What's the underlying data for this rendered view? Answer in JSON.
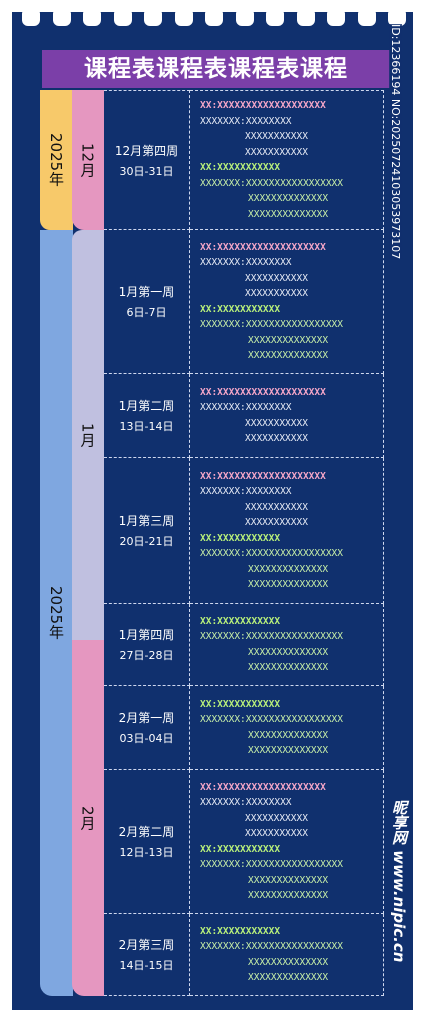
{
  "title": "课程表课程表课程表课程",
  "years": [
    {
      "label": "2025年",
      "color": "#f7c96a"
    },
    {
      "label": "2025年",
      "color": "#7fa7e0"
    }
  ],
  "months": [
    {
      "label": "12月",
      "color": "#e597c0"
    },
    {
      "label": "1月",
      "color": "#c0c0e0"
    },
    {
      "label": "2月",
      "color": "#e597c0"
    }
  ],
  "line_colors": {
    "pink-head": "#f4a6c8",
    "white": "#e8ecf6",
    "white-cont": "#e8ecf6",
    "green-head": "#b8f07a",
    "green": "#c8f0a8",
    "green-cont": "#c8f0a8"
  },
  "weeks": [
    {
      "label": "12月第四周",
      "dates": "30日-31日",
      "lines": [
        {
          "text": "XX:XXXXXXXXXXXXXXXXXXX",
          "kind": "pink-head"
        },
        {
          "text": "XXXXXXX:XXXXXXXX",
          "kind": "white"
        },
        {
          "text": "XXXXXXXXXXX",
          "kind": "white-cont"
        },
        {
          "text": "XXXXXXXXXXX",
          "kind": "white-cont"
        },
        {
          "text": "XX:XXXXXXXXXXX",
          "kind": "green-head"
        },
        {
          "text": "XXXXXXX:XXXXXXXXXXXXXXXXX",
          "kind": "green"
        },
        {
          "text": "XXXXXXXXXXXXXX",
          "kind": "green-cont"
        },
        {
          "text": "XXXXXXXXXXXXXX",
          "kind": "green-cont"
        }
      ]
    },
    {
      "label": "1月第一周",
      "dates": "6日-7日",
      "lines": [
        {
          "text": "XX:XXXXXXXXXXXXXXXXXXX",
          "kind": "pink-head"
        },
        {
          "text": "XXXXXXX:XXXXXXXX",
          "kind": "white"
        },
        {
          "text": "XXXXXXXXXXX",
          "kind": "white-cont"
        },
        {
          "text": "XXXXXXXXXXX",
          "kind": "white-cont"
        },
        {
          "text": "XX:XXXXXXXXXXX",
          "kind": "green-head"
        },
        {
          "text": "XXXXXXX:XXXXXXXXXXXXXXXXX",
          "kind": "green"
        },
        {
          "text": "XXXXXXXXXXXXXX",
          "kind": "green-cont"
        },
        {
          "text": "XXXXXXXXXXXXXX",
          "kind": "green-cont"
        }
      ]
    },
    {
      "label": "1月第二周",
      "dates": "13日-14日",
      "lines": [
        {
          "text": "XX:XXXXXXXXXXXXXXXXXXX",
          "kind": "pink-head"
        },
        {
          "text": "XXXXXXX:XXXXXXXX",
          "kind": "white"
        },
        {
          "text": "XXXXXXXXXXX",
          "kind": "white-cont"
        },
        {
          "text": "XXXXXXXXXXX",
          "kind": "white-cont"
        }
      ]
    },
    {
      "label": "1月第三周",
      "dates": "20日-21日",
      "lines": [
        {
          "text": "XX:XXXXXXXXXXXXXXXXXXX",
          "kind": "pink-head"
        },
        {
          "text": "XXXXXXX:XXXXXXXX",
          "kind": "white"
        },
        {
          "text": "XXXXXXXXXXX",
          "kind": "white-cont"
        },
        {
          "text": "XXXXXXXXXXX",
          "kind": "white-cont"
        },
        {
          "text": "XX:XXXXXXXXXXX",
          "kind": "green-head"
        },
        {
          "text": "XXXXXXX:XXXXXXXXXXXXXXXXX",
          "kind": "green"
        },
        {
          "text": "XXXXXXXXXXXXXX",
          "kind": "green-cont"
        },
        {
          "text": "XXXXXXXXXXXXXX",
          "kind": "green-cont"
        }
      ]
    },
    {
      "label": "1月第四周",
      "dates": "27日-28日",
      "lines": [
        {
          "text": "XX:XXXXXXXXXXX",
          "kind": "green-head"
        },
        {
          "text": "XXXXXXX:XXXXXXXXXXXXXXXXX",
          "kind": "green"
        },
        {
          "text": "XXXXXXXXXXXXXX",
          "kind": "green-cont"
        },
        {
          "text": "XXXXXXXXXXXXXX",
          "kind": "green-cont"
        }
      ]
    },
    {
      "label": "2月第一周",
      "dates": "03日-04日",
      "lines": [
        {
          "text": "XX:XXXXXXXXXXX",
          "kind": "green-head"
        },
        {
          "text": "XXXXXXX:XXXXXXXXXXXXXXXXX",
          "kind": "green"
        },
        {
          "text": "XXXXXXXXXXXXXX",
          "kind": "green-cont"
        },
        {
          "text": "XXXXXXXXXXXXXX",
          "kind": "green-cont"
        }
      ]
    },
    {
      "label": "2月第二周",
      "dates": "12日-13日",
      "lines": [
        {
          "text": "XX:XXXXXXXXXXXXXXXXXXX",
          "kind": "pink-head"
        },
        {
          "text": "XXXXXXX:XXXXXXXX",
          "kind": "white"
        },
        {
          "text": "XXXXXXXXXXX",
          "kind": "white-cont"
        },
        {
          "text": "XXXXXXXXXXX",
          "kind": "white-cont"
        },
        {
          "text": "XX:XXXXXXXXXXX",
          "kind": "green-head"
        },
        {
          "text": "XXXXXXX:XXXXXXXXXXXXXXXXX",
          "kind": "green"
        },
        {
          "text": "XXXXXXXXXXXXXX",
          "kind": "green-cont"
        },
        {
          "text": "XXXXXXXXXXXXXX",
          "kind": "green-cont"
        }
      ]
    },
    {
      "label": "2月第三周",
      "dates": "14日-15日",
      "lines": [
        {
          "text": "XX:XXXXXXXXXXX",
          "kind": "green-head"
        },
        {
          "text": "XXXXXXX:XXXXXXXXXXXXXXXXX",
          "kind": "green"
        },
        {
          "text": "XXXXXXXXXXXXXX",
          "kind": "green-cont"
        },
        {
          "text": "XXXXXXXXXXXXXX",
          "kind": "green-cont"
        }
      ]
    }
  ],
  "watermark": {
    "id": "ID:12366194 NO:20250724103053973107",
    "site": "昵享网 www.nipic.cn"
  }
}
